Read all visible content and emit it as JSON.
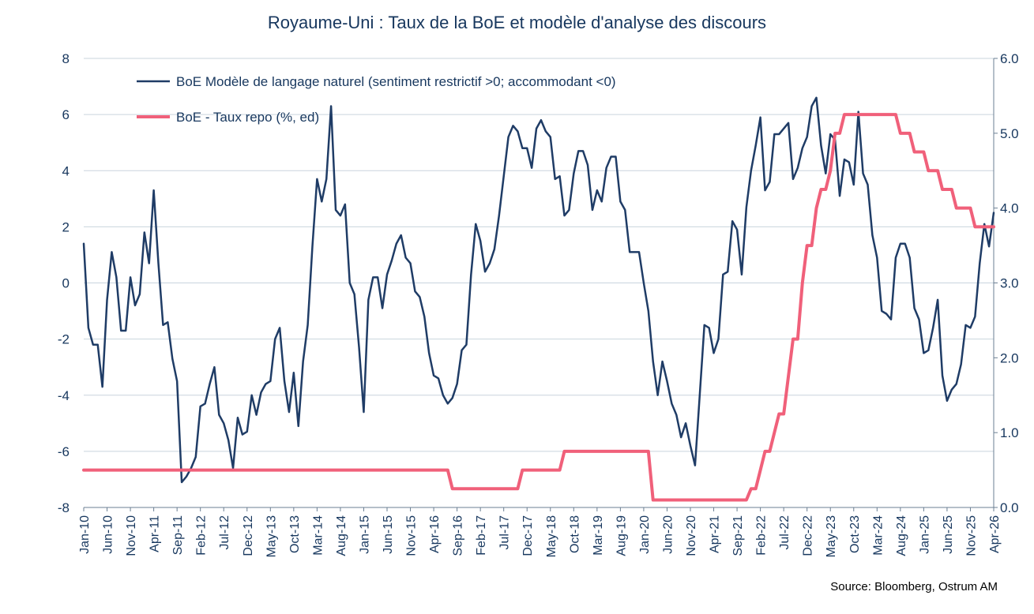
{
  "chart_data": {
    "type": "line",
    "title": "Royaume-Uni : Taux de la BoE et modèle d'analyse des discours",
    "source": "Source: Bloomberg, Ostrum AM",
    "y_left": {
      "range": [
        -8,
        8
      ],
      "ticks": [
        "8",
        "6",
        "4",
        "2",
        "0",
        "-2",
        "-4",
        "-6",
        "-8"
      ]
    },
    "y_right": {
      "range": [
        0,
        6
      ],
      "ticks": [
        "6.0",
        "5.0",
        "4.0",
        "3.0",
        "2.0",
        "1.0",
        "0.0"
      ]
    },
    "x_range": [
      "2010-01",
      "2026-04"
    ],
    "grid": true,
    "legend_position": "top-left",
    "x_tick_labels": [
      {
        "date": "2010-01",
        "label": "Jan-10"
      },
      {
        "date": "2010-06",
        "label": "Jun-10"
      },
      {
        "date": "2010-11",
        "label": "Nov-10"
      },
      {
        "date": "2011-04",
        "label": "Apr-11"
      },
      {
        "date": "2011-09",
        "label": "Sep-11"
      },
      {
        "date": "2012-02",
        "label": "Feb-12"
      },
      {
        "date": "2012-07",
        "label": "Jul-12"
      },
      {
        "date": "2012-12",
        "label": "Dec-12"
      },
      {
        "date": "2013-05",
        "label": "May-13"
      },
      {
        "date": "2013-10",
        "label": "Oct-13"
      },
      {
        "date": "2014-03",
        "label": "Mar-14"
      },
      {
        "date": "2014-08",
        "label": "Aug-14"
      },
      {
        "date": "2015-01",
        "label": "Jan-15"
      },
      {
        "date": "2015-06",
        "label": "Jun-15"
      },
      {
        "date": "2015-11",
        "label": "Nov-15"
      },
      {
        "date": "2016-04",
        "label": "Apr-16"
      },
      {
        "date": "2016-09",
        "label": "Sep-16"
      },
      {
        "date": "2017-02",
        "label": "Feb-17"
      },
      {
        "date": "2017-07",
        "label": "Jul-17"
      },
      {
        "date": "2017-12",
        "label": "Dec-17"
      },
      {
        "date": "2018-05",
        "label": "May-18"
      },
      {
        "date": "2018-10",
        "label": "Oct-18"
      },
      {
        "date": "2019-03",
        "label": "Mar-19"
      },
      {
        "date": "2019-08",
        "label": "Aug-19"
      },
      {
        "date": "2020-01",
        "label": "Jan-20"
      },
      {
        "date": "2020-06",
        "label": "Jun-20"
      },
      {
        "date": "2020-11",
        "label": "Nov-20"
      },
      {
        "date": "2021-04",
        "label": "Apr-21"
      },
      {
        "date": "2021-09",
        "label": "Sep-21"
      },
      {
        "date": "2022-02",
        "label": "Feb-22"
      },
      {
        "date": "2022-07",
        "label": "Jul-22"
      },
      {
        "date": "2022-12",
        "label": "Dec-22"
      },
      {
        "date": "2023-05",
        "label": "May-23"
      },
      {
        "date": "2023-10",
        "label": "Oct-23"
      },
      {
        "date": "2024-03",
        "label": "Mar-24"
      },
      {
        "date": "2024-08",
        "label": "Aug-24"
      },
      {
        "date": "2025-01",
        "label": "Jan-25"
      },
      {
        "date": "2025-06",
        "label": "Jun-25"
      },
      {
        "date": "2025-11",
        "label": "Nov-25"
      },
      {
        "date": "2026-04",
        "label": "Apr-26"
      }
    ],
    "series": [
      {
        "name": "BoE Modèle de langage naturel (sentiment restrictif >0; accommodant <0)",
        "axis": "left",
        "color": "#1f3c66",
        "points": [
          [
            "2010-01",
            1.4
          ],
          [
            "2010-02",
            -1.6
          ],
          [
            "2010-03",
            -2.2
          ],
          [
            "2010-04",
            -2.2
          ],
          [
            "2010-05",
            -3.7
          ],
          [
            "2010-06",
            -0.6
          ],
          [
            "2010-07",
            1.1
          ],
          [
            "2010-08",
            0.2
          ],
          [
            "2010-09",
            -1.7
          ],
          [
            "2010-10",
            -1.7
          ],
          [
            "2010-11",
            0.2
          ],
          [
            "2010-12",
            -0.8
          ],
          [
            "2011-01",
            -0.4
          ],
          [
            "2011-02",
            1.8
          ],
          [
            "2011-03",
            0.7
          ],
          [
            "2011-04",
            3.3
          ],
          [
            "2011-05",
            0.7
          ],
          [
            "2011-06",
            -1.5
          ],
          [
            "2011-07",
            -1.4
          ],
          [
            "2011-08",
            -2.7
          ],
          [
            "2011-09",
            -3.5
          ],
          [
            "2011-10",
            -7.1
          ],
          [
            "2011-11",
            -6.9
          ],
          [
            "2011-12",
            -6.6
          ],
          [
            "2012-01",
            -6.2
          ],
          [
            "2012-02",
            -4.4
          ],
          [
            "2012-03",
            -4.3
          ],
          [
            "2012-04",
            -3.6
          ],
          [
            "2012-05",
            -3.0
          ],
          [
            "2012-06",
            -4.7
          ],
          [
            "2012-07",
            -5.0
          ],
          [
            "2012-08",
            -5.6
          ],
          [
            "2012-09",
            -6.6
          ],
          [
            "2012-10",
            -4.8
          ],
          [
            "2012-11",
            -5.4
          ],
          [
            "2012-12",
            -5.3
          ],
          [
            "2013-01",
            -4.0
          ],
          [
            "2013-02",
            -4.7
          ],
          [
            "2013-03",
            -3.9
          ],
          [
            "2013-04",
            -3.6
          ],
          [
            "2013-05",
            -3.5
          ],
          [
            "2013-06",
            -2.0
          ],
          [
            "2013-07",
            -1.6
          ],
          [
            "2013-08",
            -3.5
          ],
          [
            "2013-09",
            -4.6
          ],
          [
            "2013-10",
            -3.2
          ],
          [
            "2013-11",
            -5.1
          ],
          [
            "2013-12",
            -2.8
          ],
          [
            "2014-01",
            -1.5
          ],
          [
            "2014-02",
            1.3
          ],
          [
            "2014-03",
            3.7
          ],
          [
            "2014-04",
            2.9
          ],
          [
            "2014-05",
            3.7
          ],
          [
            "2014-06",
            6.3
          ],
          [
            "2014-07",
            2.6
          ],
          [
            "2014-08",
            2.4
          ],
          [
            "2014-09",
            2.8
          ],
          [
            "2014-10",
            0.0
          ],
          [
            "2014-11",
            -0.4
          ],
          [
            "2014-12",
            -2.3
          ],
          [
            "2015-01",
            -4.6
          ],
          [
            "2015-02",
            -0.6
          ],
          [
            "2015-03",
            0.2
          ],
          [
            "2015-04",
            0.2
          ],
          [
            "2015-05",
            -0.9
          ],
          [
            "2015-06",
            0.3
          ],
          [
            "2015-07",
            0.8
          ],
          [
            "2015-08",
            1.4
          ],
          [
            "2015-09",
            1.7
          ],
          [
            "2015-10",
            0.9
          ],
          [
            "2015-11",
            0.7
          ],
          [
            "2015-12",
            -0.3
          ],
          [
            "2016-01",
            -0.5
          ],
          [
            "2016-02",
            -1.2
          ],
          [
            "2016-03",
            -2.5
          ],
          [
            "2016-04",
            -3.3
          ],
          [
            "2016-05",
            -3.4
          ],
          [
            "2016-06",
            -4.0
          ],
          [
            "2016-07",
            -4.3
          ],
          [
            "2016-08",
            -4.1
          ],
          [
            "2016-09",
            -3.6
          ],
          [
            "2016-10",
            -2.4
          ],
          [
            "2016-11",
            -2.2
          ],
          [
            "2016-12",
            0.3
          ],
          [
            "2017-01",
            2.1
          ],
          [
            "2017-02",
            1.5
          ],
          [
            "2017-03",
            0.4
          ],
          [
            "2017-04",
            0.7
          ],
          [
            "2017-05",
            1.2
          ],
          [
            "2017-06",
            2.4
          ],
          [
            "2017-07",
            3.8
          ],
          [
            "2017-08",
            5.2
          ],
          [
            "2017-09",
            5.6
          ],
          [
            "2017-10",
            5.4
          ],
          [
            "2017-11",
            4.8
          ],
          [
            "2017-12",
            4.8
          ],
          [
            "2018-01",
            4.1
          ],
          [
            "2018-02",
            5.5
          ],
          [
            "2018-03",
            5.8
          ],
          [
            "2018-04",
            5.4
          ],
          [
            "2018-05",
            5.2
          ],
          [
            "2018-06",
            3.7
          ],
          [
            "2018-07",
            3.8
          ],
          [
            "2018-08",
            2.4
          ],
          [
            "2018-09",
            2.6
          ],
          [
            "2018-10",
            3.9
          ],
          [
            "2018-11",
            4.7
          ],
          [
            "2018-12",
            4.7
          ],
          [
            "2019-01",
            4.2
          ],
          [
            "2019-02",
            2.6
          ],
          [
            "2019-03",
            3.3
          ],
          [
            "2019-04",
            2.9
          ],
          [
            "2019-05",
            4.1
          ],
          [
            "2019-06",
            4.5
          ],
          [
            "2019-07",
            4.5
          ],
          [
            "2019-08",
            2.9
          ],
          [
            "2019-09",
            2.6
          ],
          [
            "2019-10",
            1.1
          ],
          [
            "2019-11",
            1.1
          ],
          [
            "2019-12",
            1.1
          ],
          [
            "2020-01",
            0.0
          ],
          [
            "2020-02",
            -1.0
          ],
          [
            "2020-03",
            -2.8
          ],
          [
            "2020-04",
            -4.0
          ],
          [
            "2020-05",
            -2.8
          ],
          [
            "2020-06",
            -3.5
          ],
          [
            "2020-07",
            -4.3
          ],
          [
            "2020-08",
            -4.7
          ],
          [
            "2020-09",
            -5.5
          ],
          [
            "2020-10",
            -5.0
          ],
          [
            "2020-11",
            -5.8
          ],
          [
            "2020-12",
            -6.5
          ],
          [
            "2021-01",
            -4.0
          ],
          [
            "2021-02",
            -1.5
          ],
          [
            "2021-03",
            -1.6
          ],
          [
            "2021-04",
            -2.5
          ],
          [
            "2021-05",
            -2.0
          ],
          [
            "2021-06",
            0.3
          ],
          [
            "2021-07",
            0.4
          ],
          [
            "2021-08",
            2.2
          ],
          [
            "2021-09",
            1.9
          ],
          [
            "2021-10",
            0.3
          ],
          [
            "2021-11",
            2.7
          ],
          [
            "2021-12",
            4.0
          ],
          [
            "2022-01",
            4.9
          ],
          [
            "2022-02",
            5.9
          ],
          [
            "2022-03",
            3.3
          ],
          [
            "2022-04",
            3.6
          ],
          [
            "2022-05",
            5.3
          ],
          [
            "2022-06",
            5.3
          ],
          [
            "2022-07",
            5.5
          ],
          [
            "2022-08",
            5.7
          ],
          [
            "2022-09",
            3.7
          ],
          [
            "2022-10",
            4.1
          ],
          [
            "2022-11",
            4.8
          ],
          [
            "2022-12",
            5.2
          ],
          [
            "2023-01",
            6.3
          ],
          [
            "2023-02",
            6.6
          ],
          [
            "2023-03",
            4.9
          ],
          [
            "2023-04",
            3.9
          ],
          [
            "2023-05",
            5.3
          ],
          [
            "2023-06",
            5.1
          ],
          [
            "2023-07",
            3.1
          ],
          [
            "2023-08",
            4.4
          ],
          [
            "2023-09",
            4.3
          ],
          [
            "2023-10",
            3.5
          ],
          [
            "2023-11",
            6.1
          ],
          [
            "2023-12",
            3.9
          ],
          [
            "2024-01",
            3.5
          ],
          [
            "2024-02",
            1.7
          ],
          [
            "2024-03",
            0.9
          ],
          [
            "2024-04",
            -1.0
          ],
          [
            "2024-05",
            -1.1
          ],
          [
            "2024-06",
            -1.3
          ],
          [
            "2024-07",
            0.9
          ],
          [
            "2024-08",
            1.4
          ],
          [
            "2024-09",
            1.4
          ],
          [
            "2024-10",
            0.9
          ],
          [
            "2024-11",
            -0.9
          ],
          [
            "2024-12",
            -1.3
          ],
          [
            "2025-01",
            -2.5
          ],
          [
            "2025-02",
            -2.4
          ],
          [
            "2025-03",
            -1.6
          ],
          [
            "2025-04",
            -0.6
          ],
          [
            "2025-05",
            -3.3
          ],
          [
            "2025-06",
            -4.2
          ],
          [
            "2025-07",
            -3.8
          ],
          [
            "2025-08",
            -3.6
          ],
          [
            "2025-09",
            -2.9
          ],
          [
            "2025-10",
            -1.5
          ],
          [
            "2025-11",
            -1.6
          ],
          [
            "2025-12",
            -1.2
          ],
          [
            "2026-01",
            0.7
          ],
          [
            "2026-02",
            2.1
          ],
          [
            "2026-03",
            1.3
          ],
          [
            "2026-04",
            2.5
          ]
        ]
      },
      {
        "name": "BoE - Taux repo (%, ed)",
        "axis": "right",
        "color": "#f0607a",
        "points": [
          [
            "2010-01",
            0.5
          ],
          [
            "2016-07",
            0.5
          ],
          [
            "2016-08",
            0.25
          ],
          [
            "2017-10",
            0.25
          ],
          [
            "2017-11",
            0.5
          ],
          [
            "2018-07",
            0.5
          ],
          [
            "2018-08",
            0.75
          ],
          [
            "2020-02",
            0.75
          ],
          [
            "2020-03",
            0.1
          ],
          [
            "2021-11",
            0.1
          ],
          [
            "2021-12",
            0.25
          ],
          [
            "2022-01",
            0.25
          ],
          [
            "2022-02",
            0.5
          ],
          [
            "2022-03",
            0.75
          ],
          [
            "2022-04",
            0.75
          ],
          [
            "2022-05",
            1.0
          ],
          [
            "2022-06",
            1.25
          ],
          [
            "2022-07",
            1.25
          ],
          [
            "2022-08",
            1.75
          ],
          [
            "2022-09",
            2.25
          ],
          [
            "2022-10",
            2.25
          ],
          [
            "2022-11",
            3.0
          ],
          [
            "2022-12",
            3.5
          ],
          [
            "2023-01",
            3.5
          ],
          [
            "2023-02",
            4.0
          ],
          [
            "2023-03",
            4.25
          ],
          [
            "2023-04",
            4.25
          ],
          [
            "2023-05",
            4.5
          ],
          [
            "2023-06",
            5.0
          ],
          [
            "2023-07",
            5.0
          ],
          [
            "2023-08",
            5.25
          ],
          [
            "2024-07",
            5.25
          ],
          [
            "2024-08",
            5.0
          ],
          [
            "2024-10",
            5.0
          ],
          [
            "2024-11",
            4.75
          ],
          [
            "2025-01",
            4.75
          ],
          [
            "2025-02",
            4.5
          ],
          [
            "2025-04",
            4.5
          ],
          [
            "2025-05",
            4.25
          ],
          [
            "2025-07",
            4.25
          ],
          [
            "2025-08",
            4.0
          ],
          [
            "2025-11",
            4.0
          ],
          [
            "2025-12",
            3.75
          ],
          [
            "2026-04",
            3.75
          ]
        ]
      }
    ]
  }
}
